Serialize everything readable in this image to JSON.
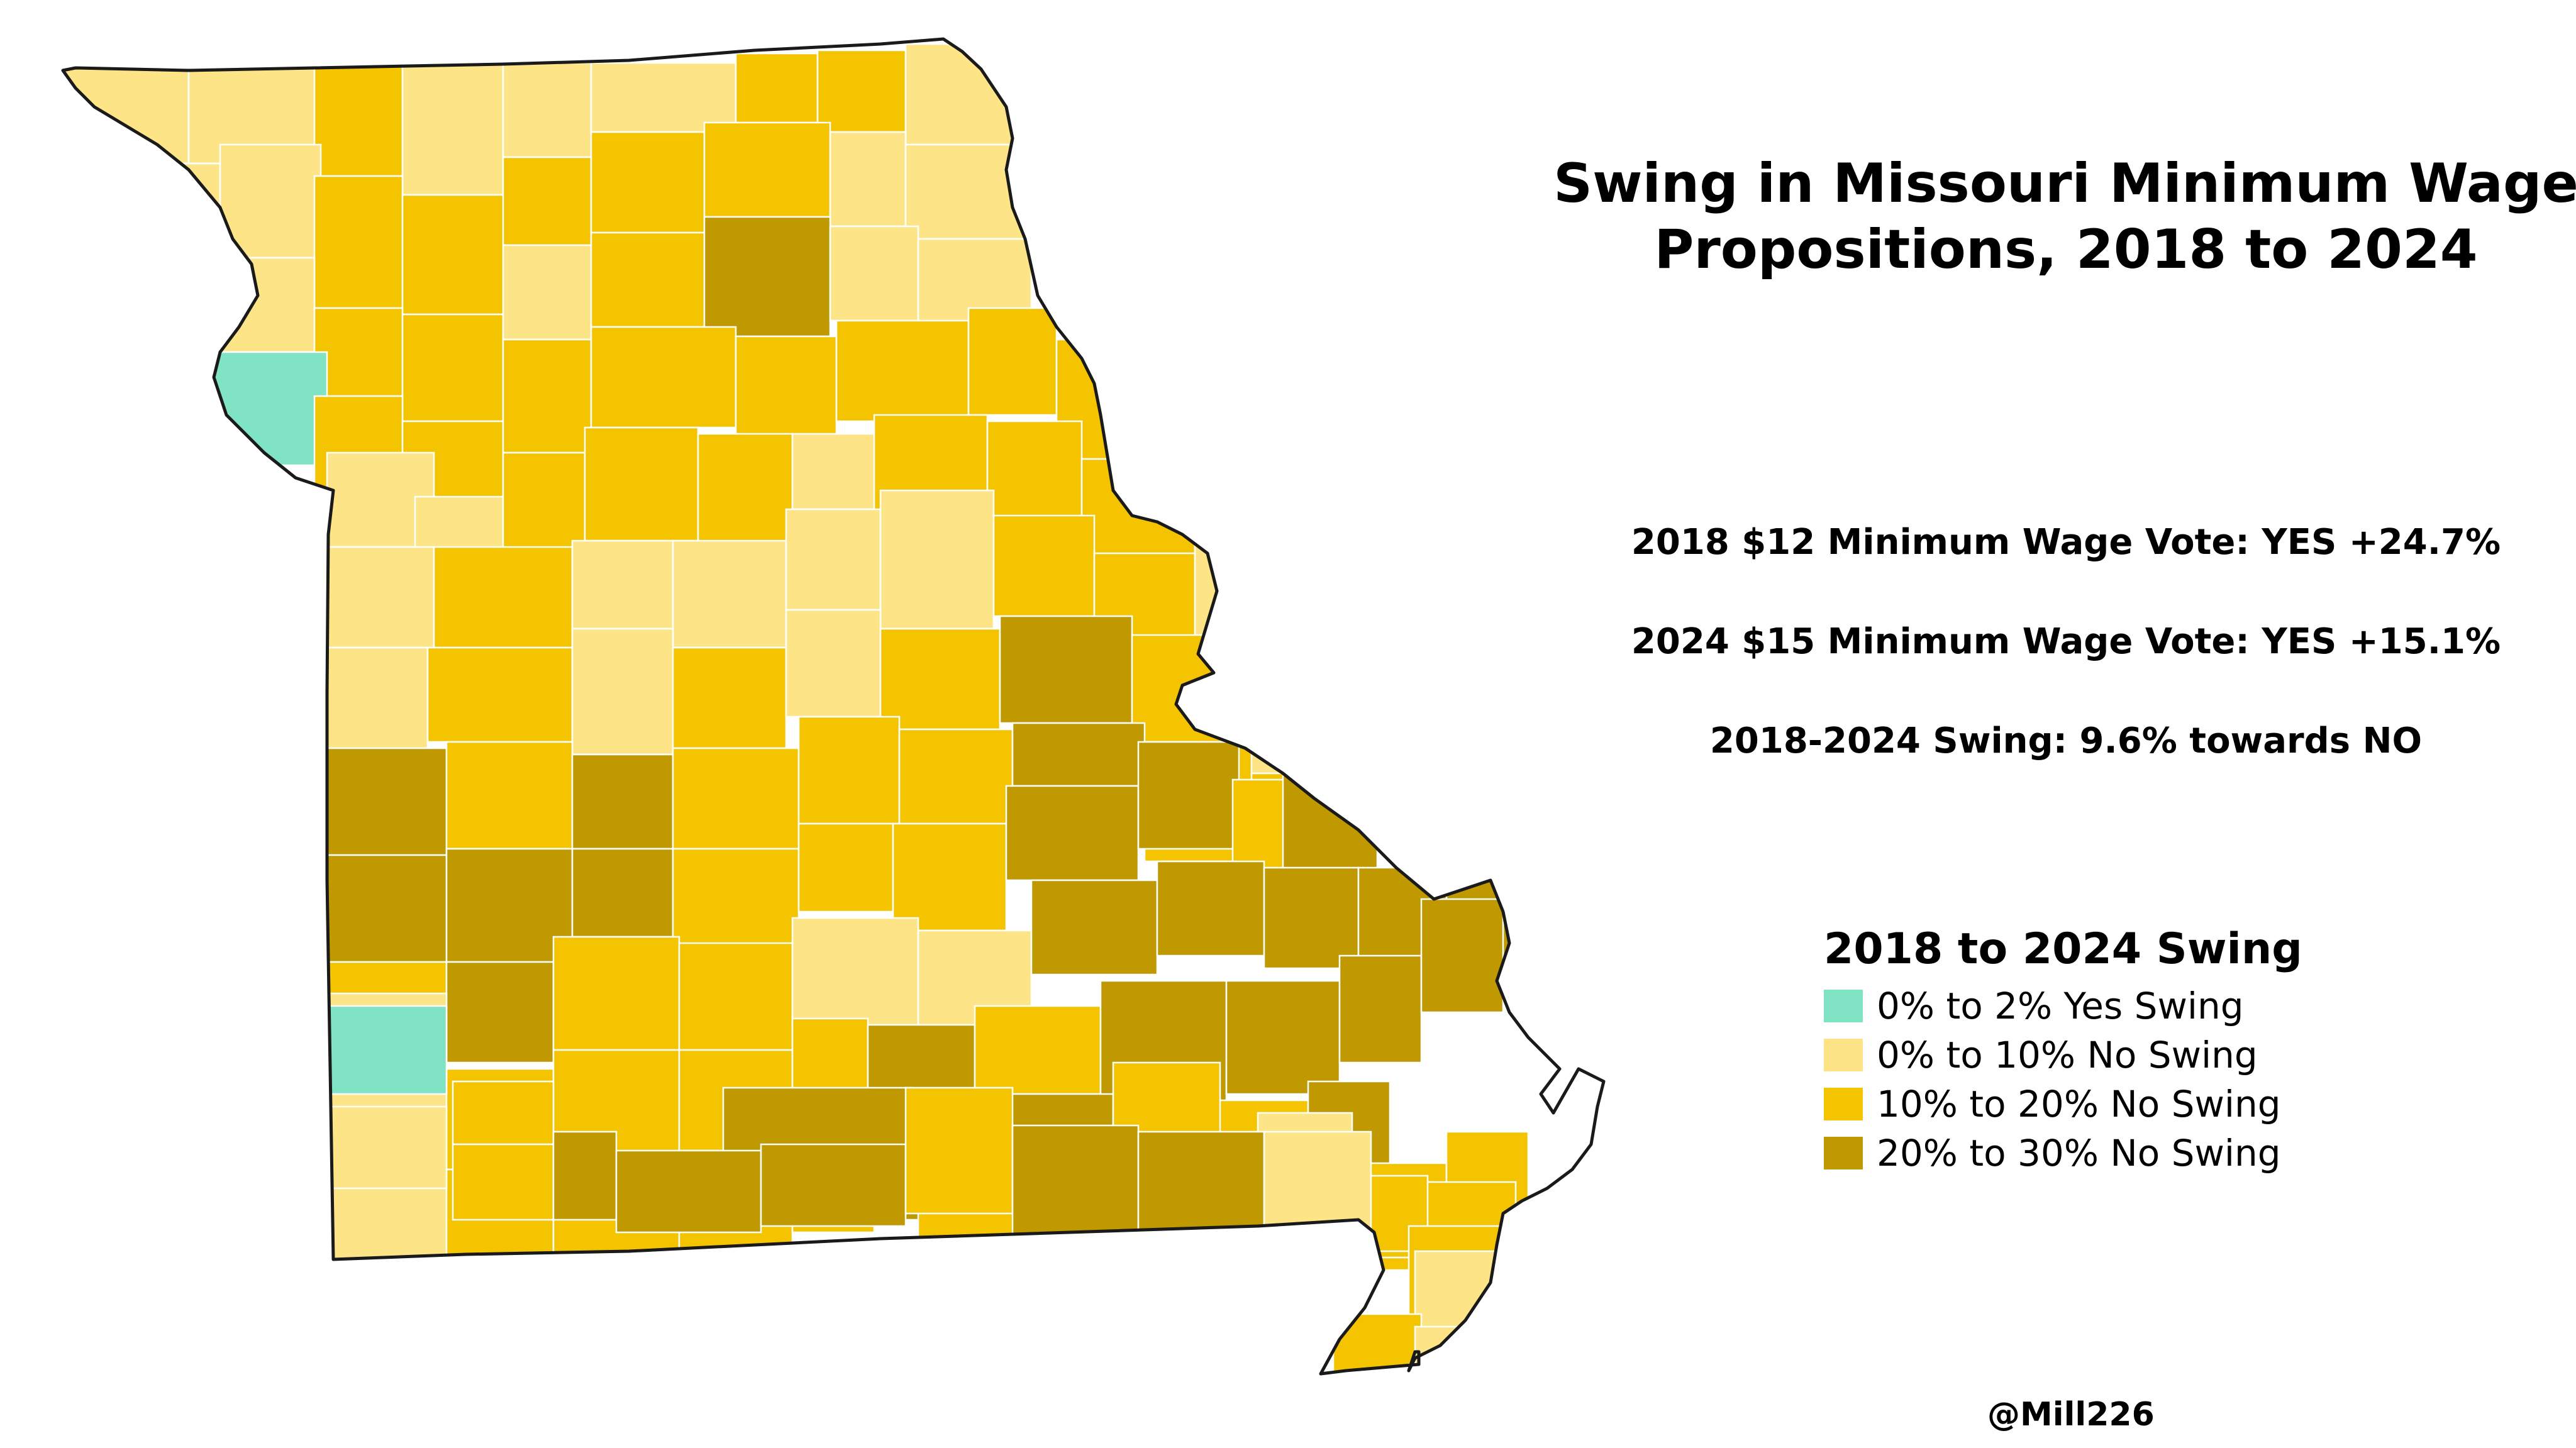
{
  "title": "Swing in Missouri Minimum Wage\nPropositions, 2018 to 2024",
  "stats": {
    "vote_2018": "2018 $12 Minimum Wage Vote: YES +24.7%",
    "vote_2024": "2024 $15 Minimum Wage Vote: YES +15.1%",
    "swing": "2018-2024 Swing: 9.6% towards NO"
  },
  "legend": {
    "title": "2018 to 2024 Swing",
    "items": [
      {
        "label": "0% to 2% Yes Swing",
        "color": "#7FE3C4"
      },
      {
        "label": "0% to 10% No Swing",
        "color": "#FDE587"
      },
      {
        "label": "10% to 20% No Swing",
        "color": "#F5C400"
      },
      {
        "label": "20% to 30% No Swing",
        "color": "#C09800"
      }
    ]
  },
  "credit": "@Mill226",
  "map": {
    "colors": {
      "yes_0_2": "#7FE3C4",
      "no_0_10": "#FDE587",
      "no_10_20": "#F5C400",
      "no_20_30": "#C09800",
      "state_outline": "#1a1a1a",
      "county_border": "#ffffff"
    }
  }
}
